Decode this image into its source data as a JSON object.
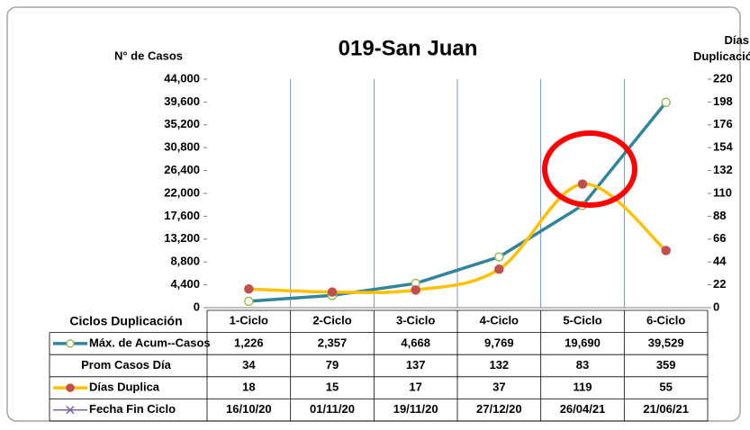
{
  "chart_data": {
    "type": "line",
    "title": "019-San Juan",
    "y_label": "N° de Casos",
    "y2_label": "Días Duplicación",
    "table_header": "Ciclos Duplicación",
    "categories": [
      "1-Ciclo",
      "2-Ciclo",
      "3-Ciclo",
      "4-Ciclo",
      "5-Ciclo",
      "6-Ciclo"
    ],
    "ylim": [
      0,
      44000
    ],
    "yticks": [
      {
        "value": 0,
        "label": "0"
      },
      {
        "value": 4400,
        "label": "4,400"
      },
      {
        "value": 8800,
        "label": "8,800"
      },
      {
        "value": 13200,
        "label": "13,200"
      },
      {
        "value": 17600,
        "label": "17,600"
      },
      {
        "value": 22000,
        "label": "22,000"
      },
      {
        "value": 26400,
        "label": "26,400"
      },
      {
        "value": 30800,
        "label": "30,800"
      },
      {
        "value": 35200,
        "label": "35,200"
      },
      {
        "value": 39600,
        "label": "39,600"
      },
      {
        "value": 44000,
        "label": "44,000"
      }
    ],
    "y2lim": [
      0,
      220
    ],
    "y2ticks": [
      0,
      22,
      44,
      66,
      88,
      110,
      132,
      154,
      176,
      198,
      220
    ],
    "series": [
      {
        "name": "Máx. de Acum--Casos",
        "color": "#31849b",
        "marker_color": "#ffffff",
        "marker_edge": "#9bbb59",
        "values": [
          1226,
          2357,
          4668,
          9769,
          19690,
          39529
        ],
        "value_labels": [
          "1,226",
          "2,357",
          "4,668",
          "9,769",
          "19,690",
          "39,529"
        ]
      },
      {
        "name": "Prom Casos Día",
        "values": [
          34,
          79,
          137,
          132,
          83,
          359
        ]
      },
      {
        "name": "Días Duplica",
        "color": "#ffc000",
        "marker_color": "#c0504d",
        "marker_edge": "#c0504d",
        "axis": "y2",
        "smooth": true,
        "values": [
          18,
          15,
          17,
          37,
          119,
          55
        ]
      },
      {
        "name": "Fecha Fin Ciclo",
        "color": "#8064a2",
        "marker": "x",
        "values": [
          "16/10/20",
          "01/11/20",
          "19/11/20",
          "27/12/20",
          "26/04/21",
          "21/06/21"
        ]
      }
    ]
  }
}
